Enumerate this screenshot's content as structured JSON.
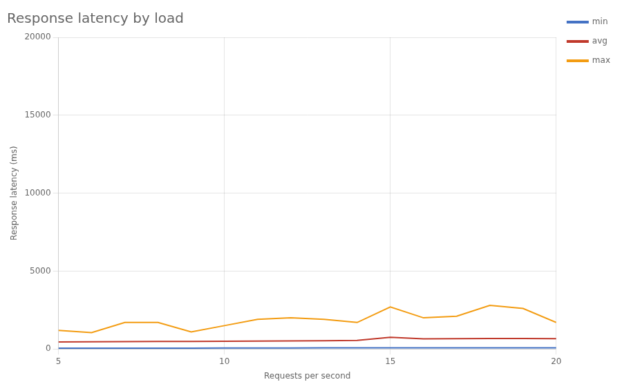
{
  "chart_data": {
    "type": "line",
    "title": "Response latency by load",
    "xlabel": "Requests per second",
    "ylabel": "Response latency (ms)",
    "x": [
      5,
      6,
      7,
      8,
      9,
      10,
      11,
      12,
      13,
      14,
      15,
      16,
      17,
      18,
      19,
      20
    ],
    "series": [
      {
        "name": "min",
        "color": "#4472c4",
        "values": [
          50,
          50,
          55,
          55,
          55,
          60,
          60,
          65,
          70,
          70,
          75,
          70,
          70,
          70,
          70,
          70
        ]
      },
      {
        "name": "avg",
        "color": "#c0392b",
        "values": [
          450,
          460,
          470,
          480,
          490,
          500,
          510,
          520,
          530,
          550,
          750,
          650,
          660,
          670,
          670,
          660
        ]
      },
      {
        "name": "max",
        "color": "#f39c12",
        "values": [
          1200,
          1050,
          1700,
          1700,
          1100,
          1500,
          1900,
          2000,
          1900,
          1700,
          2700,
          2000,
          2100,
          2800,
          2600,
          1700
        ]
      }
    ],
    "xlim": [
      5,
      20
    ],
    "ylim": [
      0,
      20000
    ],
    "xticks": [
      5,
      10,
      15,
      20
    ],
    "yticks": [
      0,
      5000,
      10000,
      15000,
      20000
    ],
    "grid": true,
    "legend": "right"
  }
}
